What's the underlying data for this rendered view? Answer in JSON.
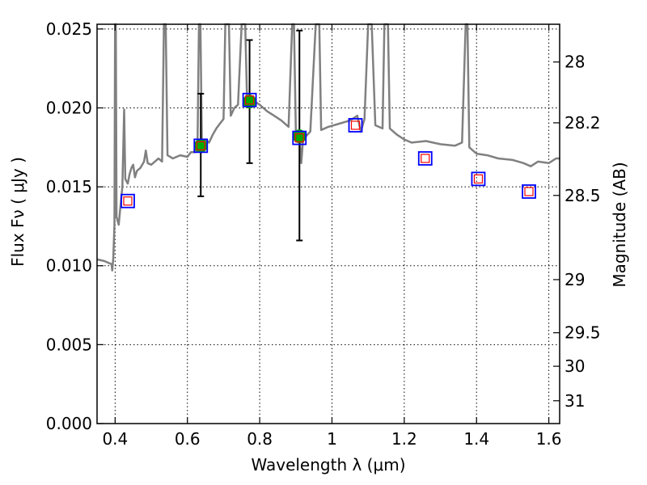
{
  "chart_data": {
    "type": "scatter",
    "xlabel": "Wavelength  λ (μm)",
    "ylabel_left": "Flux  Fν  ( μJy )",
    "ylabel_right": "Magnitude (AB)",
    "xlim": [
      0.35,
      1.63
    ],
    "ylim": [
      0.0,
      0.0253
    ],
    "grid": true,
    "x_ticks": [
      0.4,
      0.6,
      0.8,
      1.0,
      1.2,
      1.4,
      1.6
    ],
    "x_tick_labels": [
      "0.4",
      "0.6",
      "0.8",
      "1",
      "1.2",
      "1.4",
      "1.6"
    ],
    "y_ticks": [
      0.0,
      0.005,
      0.01,
      0.015,
      0.02,
      0.025
    ],
    "y_tick_labels": [
      "0.000",
      "0.005",
      "0.010",
      "0.015",
      "0.020",
      "0.025"
    ],
    "right_ticks": [
      {
        "mag": 28,
        "label": "28"
      },
      {
        "mag": 28.2,
        "label": "28.2"
      },
      {
        "mag": 28.5,
        "label": "28.5"
      },
      {
        "mag": 29,
        "label": "29"
      },
      {
        "mag": 29.5,
        "label": "29.5"
      },
      {
        "mag": 30,
        "label": "30"
      },
      {
        "mag": 31,
        "label": "31"
      }
    ],
    "colors": {
      "spectrum": "#808080",
      "observed": "#00aa00",
      "model_box": "#0000ff",
      "model_inner": "#ff0000",
      "error_bar": "#000000",
      "grid": "#000000"
    },
    "spectrum": [
      [
        0.35,
        0.0104
      ],
      [
        0.37,
        0.0103
      ],
      [
        0.39,
        0.0101
      ],
      [
        0.392,
        0.0097
      ],
      [
        0.395,
        0.0105
      ],
      [
        0.398,
        0.0126
      ],
      [
        0.4,
        0.0253
      ],
      [
        0.402,
        0.0253
      ],
      [
        0.404,
        0.0131
      ],
      [
        0.41,
        0.0126
      ],
      [
        0.415,
        0.0138
      ],
      [
        0.42,
        0.015
      ],
      [
        0.425,
        0.0199
      ],
      [
        0.428,
        0.0155
      ],
      [
        0.435,
        0.0152
      ],
      [
        0.44,
        0.0158
      ],
      [
        0.445,
        0.0162
      ],
      [
        0.45,
        0.0164
      ],
      [
        0.455,
        0.0156
      ],
      [
        0.46,
        0.016
      ],
      [
        0.47,
        0.0162
      ],
      [
        0.48,
        0.0166
      ],
      [
        0.485,
        0.0173
      ],
      [
        0.49,
        0.0165
      ],
      [
        0.5,
        0.0164
      ],
      [
        0.51,
        0.0166
      ],
      [
        0.52,
        0.0168
      ],
      [
        0.53,
        0.0166
      ],
      [
        0.535,
        0.0253
      ],
      [
        0.54,
        0.0253
      ],
      [
        0.545,
        0.017
      ],
      [
        0.56,
        0.0168
      ],
      [
        0.58,
        0.017
      ],
      [
        0.6,
        0.0169
      ],
      [
        0.61,
        0.0172
      ],
      [
        0.62,
        0.0172
      ],
      [
        0.628,
        0.0175
      ],
      [
        0.632,
        0.0253
      ],
      [
        0.636,
        0.0253
      ],
      [
        0.64,
        0.0178
      ],
      [
        0.65,
        0.018
      ],
      [
        0.66,
        0.0178
      ],
      [
        0.67,
        0.0183
      ],
      [
        0.68,
        0.0187
      ],
      [
        0.69,
        0.019
      ],
      [
        0.7,
        0.0193
      ],
      [
        0.705,
        0.0253
      ],
      [
        0.715,
        0.0253
      ],
      [
        0.72,
        0.0195
      ],
      [
        0.73,
        0.02
      ],
      [
        0.74,
        0.0202
      ],
      [
        0.75,
        0.0253
      ],
      [
        0.76,
        0.0253
      ],
      [
        0.765,
        0.0204
      ],
      [
        0.78,
        0.0205
      ],
      [
        0.8,
        0.0202
      ],
      [
        0.82,
        0.0198
      ],
      [
        0.84,
        0.0195
      ],
      [
        0.86,
        0.0192
      ],
      [
        0.88,
        0.0188
      ],
      [
        0.89,
        0.0253
      ],
      [
        0.895,
        0.0253
      ],
      [
        0.9,
        0.0185
      ],
      [
        0.91,
        0.0182
      ],
      [
        0.915,
        0.0165
      ],
      [
        0.92,
        0.018
      ],
      [
        0.94,
        0.0185
      ],
      [
        0.955,
        0.0253
      ],
      [
        0.965,
        0.0253
      ],
      [
        0.97,
        0.0186
      ],
      [
        0.99,
        0.0188
      ],
      [
        1.02,
        0.019
      ],
      [
        1.05,
        0.0192
      ],
      [
        1.07,
        0.0195
      ],
      [
        1.08,
        0.0185
      ],
      [
        1.09,
        0.0193
      ],
      [
        1.1,
        0.0253
      ],
      [
        1.11,
        0.0253
      ],
      [
        1.12,
        0.0189
      ],
      [
        1.14,
        0.0187
      ],
      [
        1.145,
        0.0253
      ],
      [
        1.155,
        0.0253
      ],
      [
        1.16,
        0.0187
      ],
      [
        1.18,
        0.0183
      ],
      [
        1.2,
        0.018
      ],
      [
        1.22,
        0.0178
      ],
      [
        1.26,
        0.0179
      ],
      [
        1.3,
        0.0177
      ],
      [
        1.34,
        0.0176
      ],
      [
        1.36,
        0.0178
      ],
      [
        1.37,
        0.0253
      ],
      [
        1.375,
        0.0253
      ],
      [
        1.38,
        0.0175
      ],
      [
        1.4,
        0.0171
      ],
      [
        1.43,
        0.017
      ],
      [
        1.46,
        0.0168
      ],
      [
        1.5,
        0.0167
      ],
      [
        1.53,
        0.0165
      ],
      [
        1.55,
        0.0163
      ],
      [
        1.57,
        0.0166
      ],
      [
        1.6,
        0.0165
      ],
      [
        1.62,
        0.0168
      ],
      [
        1.63,
        0.0168
      ]
    ],
    "observed": [
      {
        "x": 0.637,
        "y": 0.0176,
        "err_low": 0.0144,
        "err_high": 0.0209
      },
      {
        "x": 0.772,
        "y": 0.0204,
        "err_low": 0.0165,
        "err_high": 0.0243
      },
      {
        "x": 0.91,
        "y": 0.0182,
        "err_low": 0.0116,
        "err_high": 0.0249
      }
    ],
    "model": [
      {
        "x": 0.435,
        "y": 0.0141
      },
      {
        "x": 0.637,
        "y": 0.0176
      },
      {
        "x": 0.772,
        "y": 0.0205
      },
      {
        "x": 0.91,
        "y": 0.0181
      },
      {
        "x": 1.065,
        "y": 0.0189
      },
      {
        "x": 1.258,
        "y": 0.0168
      },
      {
        "x": 1.405,
        "y": 0.0155
      },
      {
        "x": 1.545,
        "y": 0.0147
      }
    ]
  }
}
